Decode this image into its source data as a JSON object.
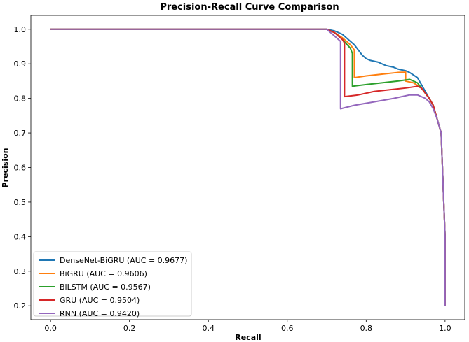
{
  "chart_data": {
    "type": "line",
    "title": "Precision-Recall Curve Comparison",
    "xlabel": "Recall",
    "ylabel": "Precision",
    "xlim": [
      -0.05,
      1.05
    ],
    "ylim": [
      0.16,
      1.04
    ],
    "xticks": [
      "0.0",
      "0.2",
      "0.4",
      "0.6",
      "0.8",
      "1.0"
    ],
    "xtick_values": [
      0.0,
      0.2,
      0.4,
      0.6,
      0.8,
      1.0
    ],
    "yticks": [
      "0.2",
      "0.3",
      "0.4",
      "0.5",
      "0.6",
      "0.7",
      "0.8",
      "0.9",
      "1.0"
    ],
    "ytick_values": [
      0.2,
      0.3,
      0.4,
      0.5,
      0.6,
      0.7,
      0.8,
      0.9,
      1.0
    ],
    "grid": false,
    "legend_position": "lower-left",
    "series": [
      {
        "name": "DenseNet-BiGRU (AUC = 0.9677)",
        "color": "#1f77b4",
        "x": [
          0.0,
          0.7,
          0.72,
          0.73,
          0.74,
          0.75,
          0.76,
          0.77,
          0.78,
          0.79,
          0.8,
          0.81,
          0.83,
          0.85,
          0.87,
          0.88,
          0.9,
          0.91,
          0.93,
          0.94,
          0.95,
          0.96,
          0.97,
          0.98,
          0.99,
          0.995,
          1.0,
          1.0
        ],
        "y": [
          1.0,
          1.0,
          0.995,
          0.99,
          0.985,
          0.975,
          0.965,
          0.955,
          0.94,
          0.925,
          0.915,
          0.91,
          0.905,
          0.895,
          0.89,
          0.885,
          0.88,
          0.875,
          0.86,
          0.84,
          0.82,
          0.8,
          0.78,
          0.74,
          0.7,
          0.55,
          0.4,
          0.2
        ]
      },
      {
        "name": "BiGRU (AUC = 0.9606)",
        "color": "#ff7f0e",
        "x": [
          0.0,
          0.7,
          0.72,
          0.74,
          0.76,
          0.77,
          0.77,
          0.8,
          0.84,
          0.88,
          0.9,
          0.9,
          0.92,
          0.94,
          0.95,
          0.96,
          0.97,
          0.98,
          0.99,
          0.995,
          1.0,
          1.0
        ],
        "y": [
          1.0,
          1.0,
          0.99,
          0.975,
          0.955,
          0.94,
          0.86,
          0.865,
          0.87,
          0.875,
          0.876,
          0.85,
          0.845,
          0.83,
          0.815,
          0.8,
          0.78,
          0.74,
          0.7,
          0.55,
          0.4,
          0.2
        ]
      },
      {
        "name": "BiLSTM (AUC = 0.9567)",
        "color": "#2ca02c",
        "x": [
          0.0,
          0.7,
          0.72,
          0.74,
          0.76,
          0.765,
          0.765,
          0.8,
          0.84,
          0.88,
          0.91,
          0.93,
          0.94,
          0.95,
          0.96,
          0.97,
          0.98,
          0.99,
          0.995,
          1.0,
          1.0
        ],
        "y": [
          1.0,
          1.0,
          0.99,
          0.97,
          0.945,
          0.93,
          0.835,
          0.84,
          0.845,
          0.85,
          0.855,
          0.845,
          0.83,
          0.815,
          0.8,
          0.78,
          0.74,
          0.7,
          0.55,
          0.4,
          0.2
        ]
      },
      {
        "name": "GRU (AUC = 0.9504)",
        "color": "#d62728",
        "x": [
          0.0,
          0.7,
          0.72,
          0.74,
          0.745,
          0.745,
          0.78,
          0.82,
          0.86,
          0.9,
          0.93,
          0.94,
          0.95,
          0.96,
          0.97,
          0.98,
          0.99,
          0.995,
          1.0,
          1.0
        ],
        "y": [
          1.0,
          1.0,
          0.99,
          0.97,
          0.96,
          0.805,
          0.81,
          0.82,
          0.825,
          0.83,
          0.835,
          0.83,
          0.815,
          0.8,
          0.78,
          0.74,
          0.7,
          0.55,
          0.4,
          0.2
        ]
      },
      {
        "name": "RNN (AUC = 0.9420)",
        "color": "#9467bd",
        "x": [
          0.0,
          0.7,
          0.72,
          0.735,
          0.735,
          0.77,
          0.82,
          0.87,
          0.91,
          0.93,
          0.95,
          0.96,
          0.97,
          0.98,
          0.99,
          0.995,
          1.0,
          1.0
        ],
        "y": [
          1.0,
          1.0,
          0.98,
          0.965,
          0.77,
          0.78,
          0.79,
          0.8,
          0.81,
          0.81,
          0.8,
          0.79,
          0.77,
          0.74,
          0.7,
          0.55,
          0.4,
          0.2
        ]
      }
    ]
  }
}
